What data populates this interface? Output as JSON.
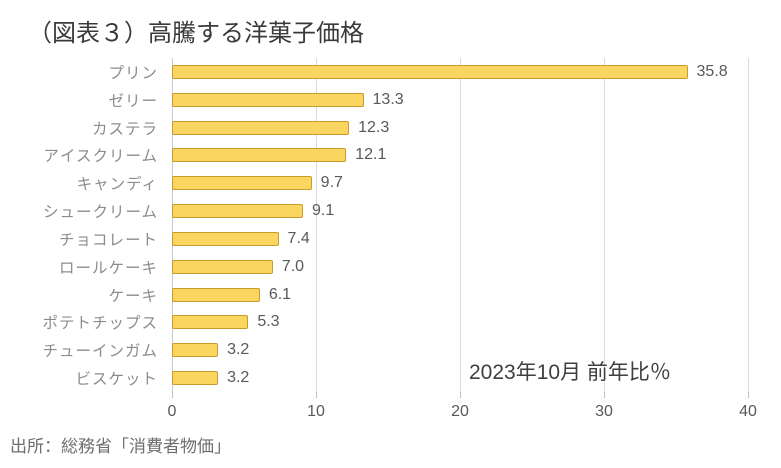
{
  "title": "（図表３）高騰する洋菓子価格",
  "annotation": "2023年10月 前年比％",
  "source": "出所：総務省「消費者物価」",
  "colors": {
    "bar_fill": "#FAD55F",
    "bar_border": "#C99A2C",
    "gridline": "#D9D9D9",
    "axis_line": "#C9C9C9",
    "title_text": "#3A3A3A",
    "category_text": "#8C8C8C",
    "value_text": "#595959",
    "source_text": "#6E6E6E"
  },
  "chart_data": {
    "type": "bar",
    "orientation": "horizontal",
    "title": "（図表３）高騰する洋菓子価格",
    "categories": [
      "プリン",
      "ゼリー",
      "カステラ",
      "アイスクリーム",
      "キャンディ",
      "シュークリーム",
      "チョコレート",
      "ロールケーキ",
      "ケーキ",
      "ポテトチップス",
      "チューインガム",
      "ビスケット"
    ],
    "values": [
      35.8,
      13.3,
      12.3,
      12.1,
      9.7,
      9.1,
      7.4,
      7.0,
      6.1,
      5.3,
      3.2,
      3.2
    ],
    "data_labels": [
      "35.8",
      "13.3",
      "12.3",
      "12.1",
      "9.7",
      "9.1",
      "7.4",
      "7.0",
      "6.1",
      "5.3",
      "3.2",
      "3.2"
    ],
    "xlabel": "",
    "ylabel": "",
    "xlim": [
      0,
      40
    ],
    "xticks": [
      0,
      10,
      20,
      30,
      40
    ],
    "grid": true,
    "legend": "none",
    "annotation": "2023年10月 前年比％",
    "source": "出所：総務省「消費者物価」"
  }
}
